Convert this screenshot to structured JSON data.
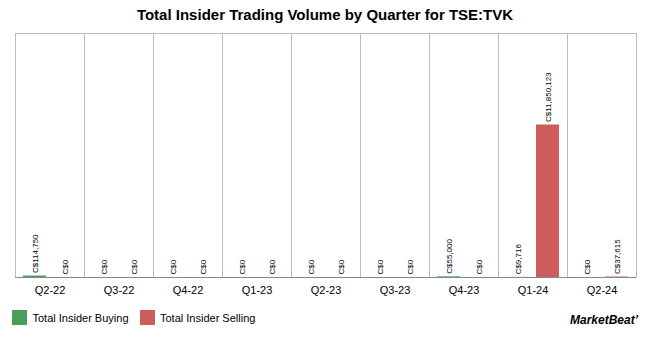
{
  "chart_data": {
    "type": "bar",
    "title": "Total Insider Trading Volume by Quarter for TSE:TVK",
    "categories": [
      "Q2-22",
      "Q3-22",
      "Q4-22",
      "Q1-23",
      "Q2-23",
      "Q3-23",
      "Q4-23",
      "Q1-24",
      "Q2-24"
    ],
    "series": [
      {
        "name": "Total Insider Buying",
        "color": "#4a9e5c",
        "values": [
          114750,
          0,
          0,
          0,
          0,
          0,
          55000,
          9716,
          0
        ],
        "value_labels": [
          "C$114,750",
          "C$0",
          "C$0",
          "C$0",
          "C$0",
          "C$0",
          "C$55,000",
          "C$9,716",
          "C$0"
        ]
      },
      {
        "name": "Total Insider Selling",
        "color": "#cd5c5c",
        "values": [
          0,
          0,
          0,
          0,
          0,
          0,
          0,
          11850123,
          37615
        ],
        "value_labels": [
          "C$0",
          "C$0",
          "C$0",
          "C$0",
          "C$0",
          "C$0",
          "C$0",
          "C$11,850,123",
          "C$37,615"
        ]
      }
    ],
    "ylim": [
      0,
      18960196.8
    ],
    "tick_labels": "x",
    "data_labels": true,
    "legend": "lower left",
    "grid": false,
    "annotations": [
      "MarketBeat’"
    ]
  }
}
